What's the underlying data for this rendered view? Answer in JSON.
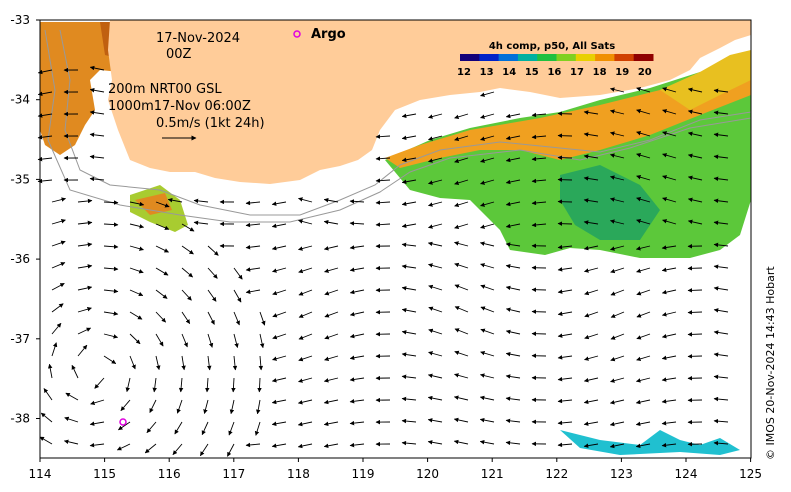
{
  "header": {
    "date": "17-Nov-2024",
    "time": "00Z",
    "argo_label": "Argo"
  },
  "legend_block": {
    "line1": "200m  NRT00 GSL",
    "line2": "1000m17-Nov 06:00Z",
    "line3": "0.5m/s (1kt 24h)"
  },
  "colorbar": {
    "title": "4h comp, p50, All Sats",
    "ticks": [
      "12",
      "13",
      "14",
      "15",
      "16",
      "17",
      "18",
      "19",
      "20"
    ],
    "colors": [
      "#12007a",
      "#0022c8",
      "#0070d8",
      "#00b0a0",
      "#20c040",
      "#80d020",
      "#e8d000",
      "#f09000",
      "#d04000",
      "#900000"
    ]
  },
  "axes": {
    "x_ticks": [
      "114",
      "115",
      "116",
      "117",
      "118",
      "119",
      "120",
      "121",
      "122",
      "123",
      "124",
      "125"
    ],
    "y_ticks": [
      "-33",
      "-34",
      "-35",
      "-36",
      "-37",
      "-38"
    ]
  },
  "credit": "© IMOS 20-Nov-2024 14:43 Hobart",
  "colors": {
    "land": "#ffcc99",
    "argo": "#e000e0"
  }
}
